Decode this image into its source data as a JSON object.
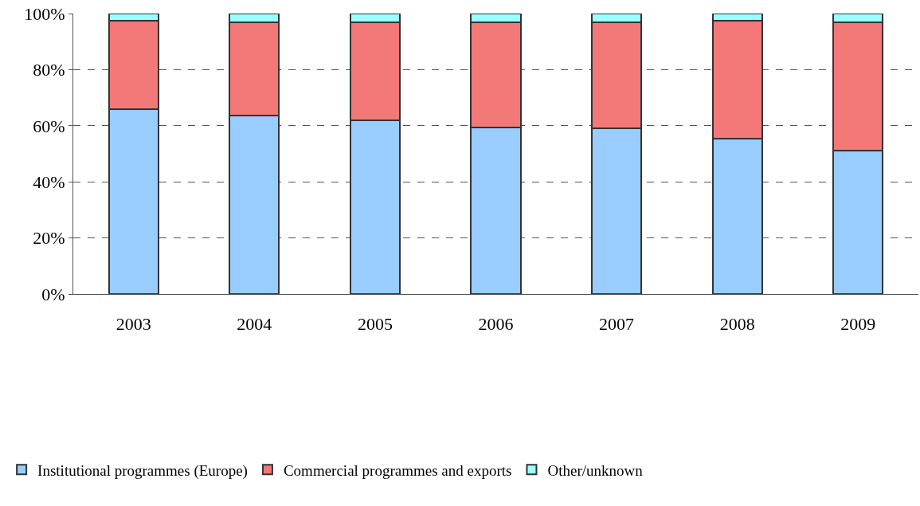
{
  "chart_data": {
    "type": "bar",
    "stacked": true,
    "categories": [
      "2003",
      "2004",
      "2005",
      "2006",
      "2007",
      "2008",
      "2009"
    ],
    "series": [
      {
        "name": "Institutional programmes (Europe)",
        "color": "#99ccff",
        "values": [
          66,
          63.5,
          62,
          59.5,
          59,
          55.5,
          51
        ]
      },
      {
        "name": "Commercial programmes and exports",
        "color": "#f37878",
        "values": [
          31.5,
          33.5,
          35,
          37.5,
          38,
          42,
          46
        ]
      },
      {
        "name": "Other/unknown",
        "color": "#99ffff",
        "values": [
          2.5,
          3,
          3,
          3,
          3,
          2.5,
          3
        ]
      }
    ],
    "ylim": [
      0,
      100
    ],
    "yticks": [
      {
        "value": 0,
        "label": "0%"
      },
      {
        "value": 20,
        "label": "20%"
      },
      {
        "value": 40,
        "label": "40%"
      },
      {
        "value": 60,
        "label": "60%"
      },
      {
        "value": 80,
        "label": "80%"
      },
      {
        "value": 100,
        "label": "100%"
      }
    ],
    "grid": "y",
    "legend": "bottom left"
  }
}
